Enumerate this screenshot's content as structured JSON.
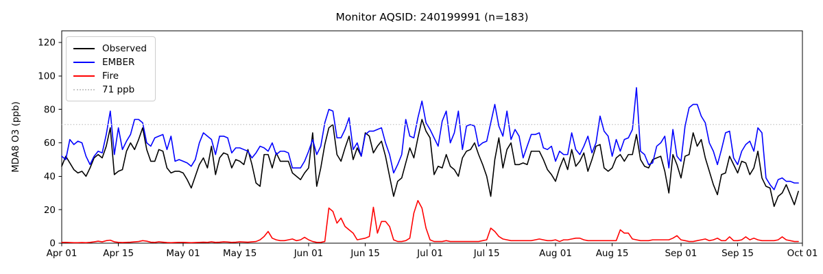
{
  "title": "Monitor AQSID: 240199991 (n=183)",
  "y_axis": {
    "label": "MDA8 O3 (ppb)",
    "ticks": [
      0,
      20,
      40,
      60,
      80,
      100,
      120
    ],
    "max": 127
  },
  "x_axis": {
    "tick_labels": [
      "Apr 01",
      "Apr 15",
      "May 01",
      "May 15",
      "Jun 01",
      "Jun 15",
      "Jul 01",
      "Jul 15",
      "Aug 01",
      "Aug 15",
      "Sep 01",
      "Sep 15",
      "Oct 01"
    ],
    "tick_days": [
      1,
      15,
      31,
      45,
      62,
      76,
      92,
      106,
      123,
      137,
      154,
      168,
      184
    ],
    "total_days": 184
  },
  "legend": {
    "items": [
      {
        "label": "Observed",
        "color": "#000000",
        "line_style": "solid"
      },
      {
        "label": "EMBER",
        "color": "#0000ff",
        "line_style": "solid"
      },
      {
        "label": "Fire",
        "color": "#ff0000",
        "line_style": "solid"
      },
      {
        "label": "71 ppb",
        "color": "#c8c8c8",
        "line_style": "dotted"
      }
    ]
  },
  "chart_data": {
    "type": "line",
    "title": "Monitor AQSID: 240199991 (n=183)",
    "xlabel": "",
    "ylabel": "MDA8 O3 (ppb)",
    "ylim": [
      0,
      127
    ],
    "grid": false,
    "legend_position": "upper left",
    "x_unit": "day",
    "x_start": "Apr 01",
    "x_end": "Sep 30",
    "n_points": 183,
    "threshold": {
      "value": 71,
      "label": "71 ppb",
      "color": "#c8c8c8",
      "style": "dotted"
    },
    "series": [
      {
        "name": "Observed",
        "color": "#000000",
        "values": [
          46,
          52,
          48,
          44,
          42,
          43,
          40,
          45,
          51,
          53,
          51,
          58,
          69,
          41,
          43,
          44,
          55,
          60,
          56,
          62,
          69,
          56,
          49,
          49,
          56,
          55,
          45,
          42,
          43,
          43,
          42,
          38,
          33,
          40,
          47,
          51,
          45,
          58,
          41,
          51,
          54,
          53,
          45,
          50,
          49,
          47,
          56,
          47,
          36,
          34,
          53,
          53,
          45,
          54,
          49,
          49,
          49,
          42,
          40,
          38,
          42,
          45,
          66,
          34,
          45,
          59,
          69,
          71,
          53,
          49,
          57,
          64,
          50,
          57,
          52,
          66,
          64,
          54,
          58,
          61,
          52,
          40,
          28,
          37,
          39,
          48,
          57,
          51,
          63,
          74,
          67,
          63,
          41,
          46,
          45,
          53,
          46,
          44,
          40,
          51,
          55,
          56,
          60,
          53,
          47,
          40,
          28,
          50,
          63,
          45,
          56,
          60,
          47,
          47,
          48,
          47,
          55,
          55,
          55,
          50,
          44,
          41,
          37,
          45,
          51,
          44,
          56,
          46,
          49,
          54,
          43,
          50,
          58,
          59,
          45,
          43,
          45,
          51,
          53,
          49,
          53,
          53,
          65,
          50,
          46,
          45,
          50,
          51,
          52,
          43,
          30,
          53,
          47,
          39,
          52,
          53,
          66,
          58,
          62,
          51,
          43,
          35,
          29,
          41,
          42,
          52,
          47,
          42,
          49,
          48,
          41,
          45,
          55,
          39,
          34,
          33,
          22,
          28,
          30,
          35,
          29,
          23,
          31
        ]
      },
      {
        "name": "EMBER",
        "color": "#0000ff",
        "values": [
          52,
          50,
          62,
          59,
          61,
          60,
          52,
          47,
          52,
          55,
          54,
          65,
          79,
          53,
          69,
          56,
          61,
          65,
          74,
          74,
          72,
          60,
          58,
          63,
          64,
          65,
          56,
          64,
          49,
          50,
          49,
          48,
          46,
          50,
          60,
          66,
          64,
          62,
          53,
          64,
          64,
          63,
          54,
          57,
          57,
          56,
          55,
          51,
          54,
          58,
          57,
          55,
          60,
          53,
          55,
          55,
          54,
          45,
          45,
          45,
          49,
          55,
          62,
          53,
          58,
          72,
          80,
          79,
          63,
          63,
          68,
          75,
          56,
          60,
          52,
          65,
          67,
          67,
          68,
          69,
          60,
          53,
          42,
          47,
          53,
          74,
          64,
          63,
          75,
          85,
          72,
          68,
          63,
          58,
          73,
          79,
          60,
          66,
          79,
          56,
          70,
          71,
          70,
          58,
          60,
          61,
          72,
          83,
          70,
          64,
          79,
          62,
          68,
          64,
          51,
          58,
          65,
          65,
          66,
          57,
          56,
          58,
          49,
          55,
          53,
          53,
          66,
          56,
          53,
          58,
          64,
          54,
          60,
          76,
          67,
          64,
          52,
          62,
          55,
          62,
          63,
          68,
          93,
          55,
          53,
          47,
          48,
          58,
          60,
          64,
          45,
          68,
          52,
          49,
          70,
          81,
          83,
          83,
          76,
          72,
          60,
          55,
          47,
          56,
          66,
          67,
          51,
          47,
          55,
          59,
          61,
          55,
          69,
          66,
          39,
          35,
          32,
          38,
          39,
          37,
          37,
          36,
          36
        ]
      },
      {
        "name": "Fire",
        "color": "#ff0000",
        "values": [
          0.5,
          0.5,
          0.4,
          0.3,
          0.3,
          0.4,
          0.3,
          0.5,
          0.8,
          1.2,
          0.8,
          1.5,
          1.8,
          0.8,
          0.5,
          0.4,
          0.5,
          0.6,
          0.8,
          1,
          1.5,
          1.2,
          0.6,
          0.5,
          0.8,
          0.6,
          0.4,
          0.3,
          0.4,
          0.5,
          0.5,
          0.4,
          0.3,
          0.4,
          0.5,
          0.6,
          0.5,
          0.8,
          0.5,
          0.6,
          0.8,
          0.7,
          0.5,
          0.6,
          0.8,
          0.7,
          0.6,
          0.8,
          1,
          2,
          4,
          7,
          3,
          2,
          1.5,
          1.5,
          2,
          2.5,
          1.5,
          2,
          3.5,
          2,
          1,
          0.5,
          0.5,
          1,
          21,
          19,
          12,
          15,
          10,
          8,
          6,
          2,
          2.5,
          3,
          4,
          21.5,
          6,
          13,
          13,
          10,
          2,
          1,
          1,
          1.5,
          3,
          18,
          25.5,
          21,
          9,
          2,
          1,
          1,
          1,
          1.5,
          1,
          1,
          1,
          1,
          1,
          1,
          1,
          1,
          1.5,
          2,
          9,
          7,
          4,
          2.5,
          2,
          1.5,
          1.5,
          1.5,
          1.5,
          1.5,
          1.5,
          2,
          2.5,
          2,
          1.5,
          1.5,
          2,
          1,
          2,
          2,
          2.5,
          3,
          3,
          2,
          1.5,
          1.5,
          1.5,
          1.5,
          1.5,
          1.5,
          1.5,
          1.5,
          8,
          6,
          6,
          2.5,
          2,
          1.5,
          1.5,
          1.5,
          2,
          2,
          2,
          2,
          2,
          3,
          4.5,
          2,
          1.5,
          1,
          1,
          1.5,
          2,
          2.5,
          1.5,
          2,
          3,
          1.5,
          1.5,
          3.8,
          1.5,
          1.5,
          2,
          3.8,
          2,
          3,
          2,
          1.5,
          1.5,
          1.5,
          1.5,
          2,
          3.8,
          2,
          1.5,
          1,
          1
        ]
      }
    ]
  }
}
